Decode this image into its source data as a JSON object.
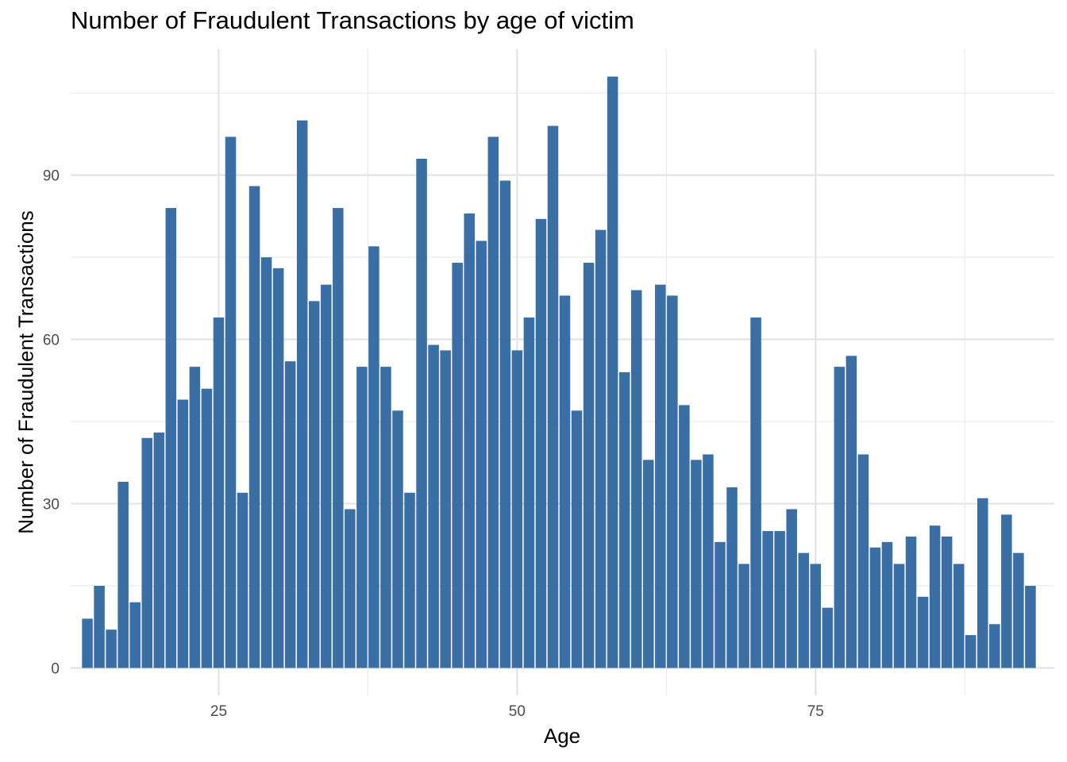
{
  "chart_data": {
    "type": "bar",
    "title": "Number of Fraudulent Transactions by age of victim",
    "xlabel": "Age",
    "ylabel": "Number of Fraudulent Transactions",
    "x_ticks": [
      25,
      50,
      75
    ],
    "y_ticks": [
      0,
      30,
      60,
      90
    ],
    "xlim": [
      12.6,
      95.0
    ],
    "ylim": [
      -5,
      113
    ],
    "grid": true,
    "bar_color": "#3A6FA6",
    "categories": [
      14,
      15,
      16,
      17,
      18,
      19,
      20,
      21,
      22,
      23,
      24,
      25,
      26,
      27,
      28,
      29,
      30,
      31,
      32,
      33,
      34,
      35,
      36,
      37,
      38,
      39,
      40,
      41,
      42,
      43,
      44,
      45,
      46,
      47,
      48,
      49,
      50,
      51,
      52,
      53,
      54,
      55,
      56,
      57,
      58,
      59,
      60,
      61,
      62,
      63,
      64,
      65,
      66,
      67,
      68,
      69,
      70,
      71,
      72,
      73,
      74,
      75,
      76,
      77,
      78,
      79,
      80,
      81,
      82,
      83,
      84,
      85,
      86,
      87,
      88,
      89,
      90,
      91,
      92,
      93
    ],
    "values": [
      9,
      15,
      7,
      34,
      12,
      42,
      43,
      84,
      49,
      55,
      51,
      64,
      97,
      32,
      88,
      75,
      73,
      56,
      100,
      67,
      70,
      84,
      29,
      55,
      77,
      55,
      47,
      32,
      93,
      59,
      58,
      74,
      83,
      78,
      97,
      89,
      58,
      64,
      82,
      99,
      68,
      47,
      74,
      80,
      108,
      54,
      69,
      38,
      70,
      68,
      48,
      38,
      39,
      23,
      33,
      19,
      64,
      25,
      25,
      29,
      21,
      19,
      11,
      55,
      57,
      39,
      22,
      23,
      19,
      24,
      13,
      26,
      24,
      19,
      6,
      31,
      8,
      28,
      21,
      15
    ]
  }
}
